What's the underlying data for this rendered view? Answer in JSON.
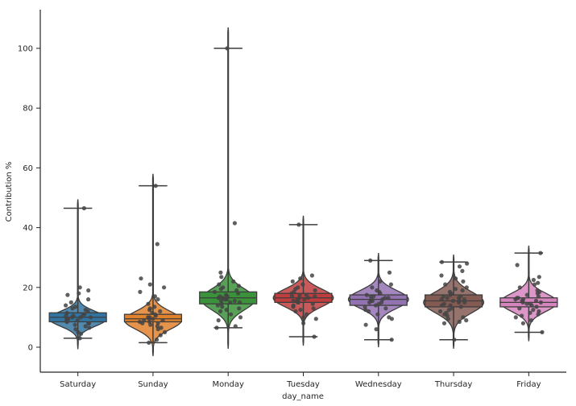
{
  "chart_data": {
    "type": "violin+box+strip",
    "title": "",
    "xlabel": "day_name",
    "ylabel": "Contribution %",
    "ylim": [
      -8,
      113
    ],
    "yticks": [
      0,
      20,
      40,
      60,
      80,
      100
    ],
    "grid": false,
    "legend": "none",
    "categories": [
      "Saturday",
      "Sunday",
      "Monday",
      "Tuesday",
      "Wednesday",
      "Thursday",
      "Friday"
    ],
    "colors": [
      "#3274a1",
      "#e1812c",
      "#3a923a",
      "#c03d3e",
      "#9372b2",
      "#845b53",
      "#d684bd"
    ],
    "series": [
      {
        "name": "Saturday",
        "box": {
          "whisker_low": 3.0,
          "q1": 8.5,
          "median": 10.0,
          "q3": 11.5,
          "whisker_high": 46.5
        },
        "violin": {
          "min": -0.5,
          "max": 49.5,
          "mode": 9.5,
          "spread": 2.5,
          "width": 0.95
        },
        "points": [
          46.5,
          20,
          19,
          18,
          17.5,
          16,
          15,
          14,
          13.5,
          13,
          12.5,
          12,
          11.5,
          11,
          11,
          10.5,
          10.5,
          10,
          10,
          10,
          9.5,
          9.5,
          9,
          9,
          8.5,
          8.5,
          8,
          8,
          7.5,
          7,
          6.5,
          6,
          5,
          4.5,
          3
        ]
      },
      {
        "name": "Sunday",
        "box": {
          "whisker_low": 1.5,
          "q1": 8.5,
          "median": 9.5,
          "q3": 11.0,
          "whisker_high": 54.0
        },
        "violin": {
          "min": -3.0,
          "max": 58.0,
          "mode": 9.0,
          "spread": 3.0,
          "width": 0.95
        },
        "points": [
          54,
          34.5,
          23,
          21,
          20,
          18.5,
          17,
          16,
          14.5,
          13.5,
          13,
          12.5,
          12,
          11.5,
          11,
          10.5,
          10,
          10,
          9.5,
          9.5,
          9,
          9,
          8.5,
          8.5,
          8,
          8,
          7.5,
          7,
          6.5,
          6,
          5,
          4,
          2.5,
          1.5
        ]
      },
      {
        "name": "Monday",
        "box": {
          "whisker_low": 6.5,
          "q1": 14.5,
          "median": 16.5,
          "q3": 18.5,
          "whisker_high": 100.0
        },
        "violin": {
          "min": -0.5,
          "max": 107.0,
          "mode": 16.0,
          "spread": 3.5,
          "width": 0.9
        },
        "points": [
          100,
          41.5,
          25,
          23.5,
          22,
          21,
          20.5,
          20,
          19.5,
          19,
          18.5,
          18,
          17.5,
          17,
          17,
          16.5,
          16.5,
          16,
          16,
          15.5,
          15.5,
          15,
          15,
          14.5,
          14,
          13.5,
          13,
          12.5,
          12,
          11,
          10,
          9,
          7,
          6.5
        ]
      },
      {
        "name": "Tuesday",
        "box": {
          "whisker_low": 3.5,
          "q1": 15.0,
          "median": 16.5,
          "q3": 18.0,
          "whisker_high": 41.0
        },
        "violin": {
          "min": 0.5,
          "max": 44.0,
          "mode": 16.5,
          "spread": 3.0,
          "width": 1.0
        },
        "points": [
          41,
          24,
          23,
          22,
          21,
          20,
          19.5,
          19,
          18.5,
          18,
          17.5,
          17.5,
          17,
          17,
          16.5,
          16.5,
          16,
          16,
          15.5,
          15.5,
          15,
          15,
          14.5,
          14,
          13.5,
          13,
          12.5,
          12,
          11,
          10,
          9.5,
          8,
          3.5
        ]
      },
      {
        "name": "Wednesday",
        "box": {
          "whisker_low": 2.5,
          "q1": 14.0,
          "median": 16.0,
          "q3": 17.5,
          "whisker_high": 29.0
        },
        "violin": {
          "min": 0.0,
          "max": 31.5,
          "mode": 16.0,
          "spread": 3.0,
          "width": 1.0
        },
        "points": [
          29,
          25,
          22,
          21,
          20,
          19,
          18.5,
          18,
          17.5,
          17,
          17,
          16.5,
          16.5,
          16,
          16,
          15.5,
          15.5,
          15,
          15,
          14.5,
          14,
          13.5,
          13,
          12.5,
          12,
          11,
          10,
          9.5,
          7.5,
          6,
          2.5
        ]
      },
      {
        "name": "Thursday",
        "box": {
          "whisker_low": 2.5,
          "q1": 13.5,
          "median": 15.5,
          "q3": 17.5,
          "whisker_high": 28.5
        },
        "violin": {
          "min": -0.5,
          "max": 31.0,
          "mode": 15.0,
          "spread": 3.5,
          "width": 1.0
        },
        "points": [
          28.5,
          28,
          27,
          25.5,
          24,
          23,
          22,
          21,
          20,
          19.5,
          19,
          18.5,
          18,
          17.5,
          17,
          17,
          16.5,
          16.5,
          16,
          16,
          15.5,
          15.5,
          15,
          15,
          14.5,
          14,
          14,
          13.5,
          13,
          12.5,
          12,
          11.5,
          11,
          10.5,
          10,
          9.5,
          9,
          8.5,
          8,
          2.5
        ]
      },
      {
        "name": "Friday",
        "box": {
          "whisker_low": 5.0,
          "q1": 13.5,
          "median": 15.0,
          "q3": 16.5,
          "whisker_high": 31.5
        },
        "violin": {
          "min": 2.0,
          "max": 34.0,
          "mode": 15.0,
          "spread": 3.0,
          "width": 0.95
        },
        "points": [
          31.5,
          27.5,
          23.5,
          22.5,
          21.5,
          21,
          20,
          19,
          18.5,
          18,
          17.5,
          17,
          16.5,
          16.5,
          16,
          16,
          15.5,
          15.5,
          15,
          15,
          14.5,
          14.5,
          14,
          13.5,
          13,
          12.5,
          12,
          11.5,
          11,
          10.5,
          10,
          9,
          8,
          5
        ]
      }
    ]
  }
}
